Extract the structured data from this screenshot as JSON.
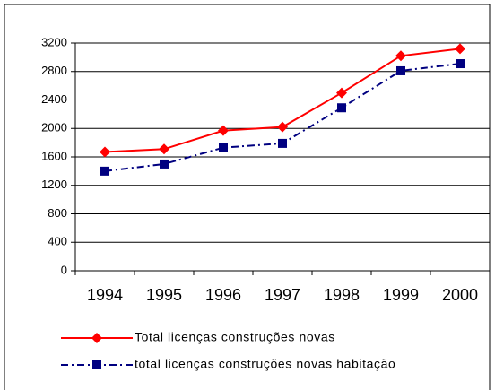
{
  "chart_data": {
    "type": "line",
    "categories": [
      "1994",
      "1995",
      "1996",
      "1997",
      "1998",
      "1999",
      "2000"
    ],
    "series": [
      {
        "name": "Total licenças construções novas",
        "color": "#ff0000",
        "marker": "diamond",
        "dash": "solid",
        "values": [
          1670,
          1710,
          1970,
          2020,
          2500,
          3020,
          3120
        ]
      },
      {
        "name": "total licenças construções novas habitação",
        "color": "#000080",
        "marker": "square",
        "dash": "dashdot",
        "values": [
          1400,
          1500,
          1730,
          1790,
          2290,
          2810,
          2910
        ]
      }
    ],
    "ylim": [
      0,
      3200
    ],
    "yticks": [
      0,
      400,
      800,
      1200,
      1600,
      2000,
      2400,
      2800,
      3200
    ],
    "grid": true,
    "legend": "bottom"
  }
}
